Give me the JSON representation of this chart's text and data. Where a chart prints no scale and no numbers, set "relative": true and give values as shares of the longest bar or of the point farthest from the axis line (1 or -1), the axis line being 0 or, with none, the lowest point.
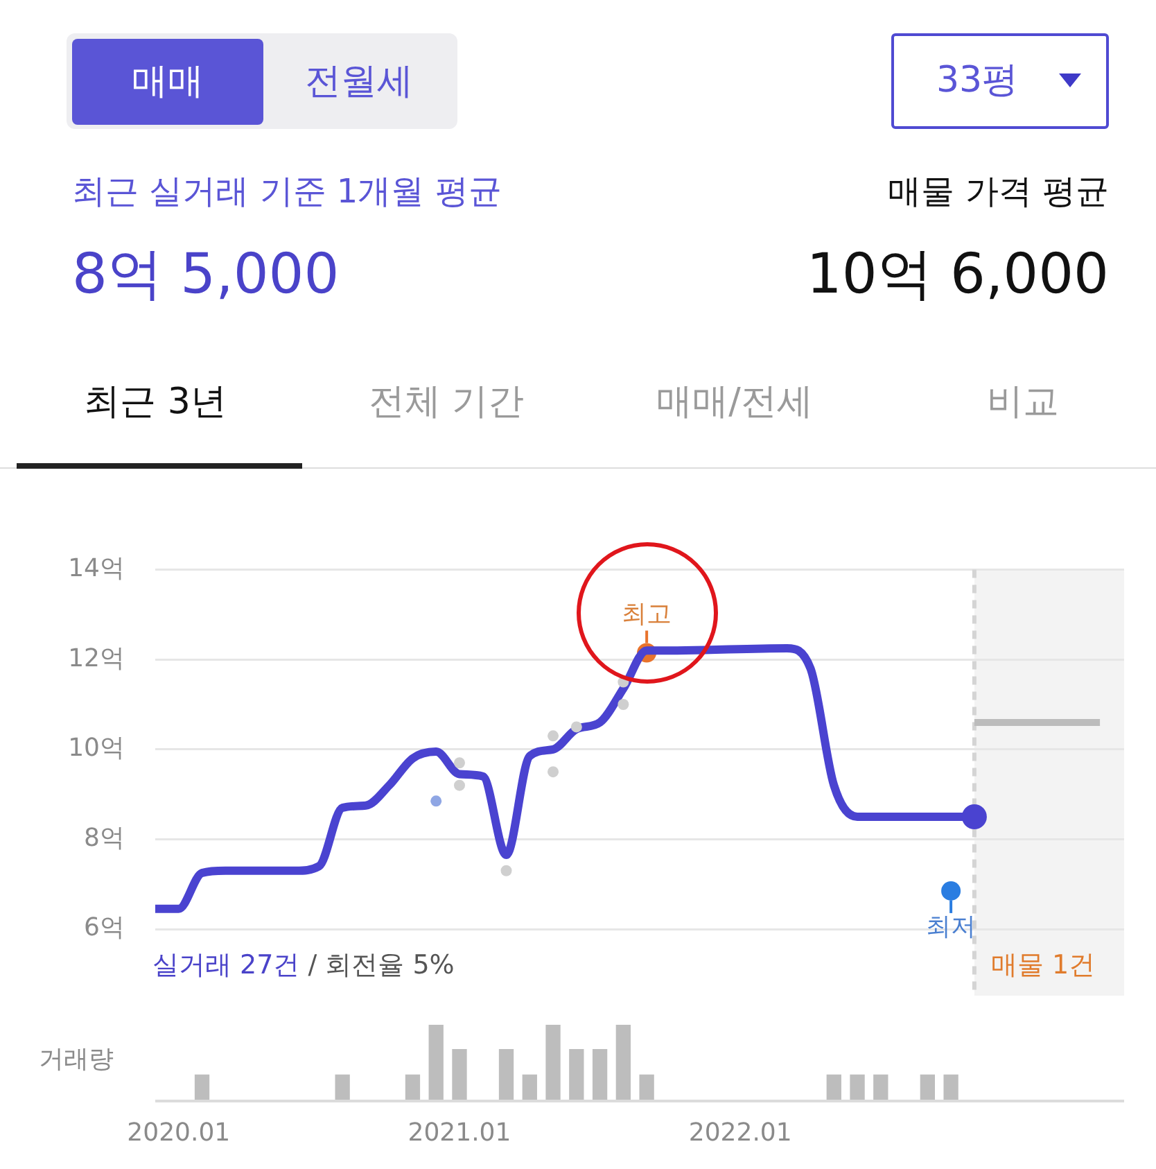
{
  "chart_data": [
    {
      "type": "other",
      "annotations": [
        "매매",
        "전월세",
        "33평",
        "최근 실거래 기준 1개월 평균",
        "8억 5,000",
        "매물 가격 평균",
        "10억 6,000",
        "최근 3년",
        "전체 기간",
        "매매/전세",
        "비교"
      ]
    },
    {
      "type": "line",
      "x": [
        "2019-12",
        "2020-01",
        "2020-02",
        "2020-03",
        "2020-06",
        "2020-07",
        "2020-08",
        "2020-09",
        "2020-10",
        "2020-11",
        "2020-12",
        "2021-01",
        "2021-02",
        "2021-03",
        "2021-04",
        "2021-05",
        "2021-06",
        "2021-07",
        "2021-08",
        "2021-09",
        "2021-10",
        "2022-03",
        "2022-04",
        "2022-05",
        "2022-06",
        "2022-11"
      ],
      "series": [
        {
          "type": "line",
          "marker": "none",
          "color": "#4a43d0",
          "values": [
            6.45,
            6.45,
            7.25,
            7.3,
            7.3,
            7.4,
            8.7,
            8.75,
            9.2,
            9.8,
            9.95,
            9.45,
            9.4,
            7.65,
            9.85,
            10.0,
            10.45,
            10.6,
            11.35,
            12.2,
            12.2,
            12.25,
            11.8,
            9.2,
            8.5,
            8.5
          ]
        },
        {
          "type": "scatter",
          "marker": "circle",
          "x": [
            "2020-12",
            "2021-01",
            "2021-01",
            "2021-03",
            "2021-05",
            "2021-05",
            "2021-06",
            "2021-08",
            "2021-08"
          ],
          "values": [
            8.85,
            9.7,
            9.2,
            7.3,
            10.3,
            9.5,
            10.5,
            11.5,
            11.0
          ],
          "colors": [
            "#8fa6e4",
            "#cfcfcf",
            "#cfcfcf",
            "#cfcfcf",
            "#cfcfcf",
            "#cfcfcf",
            "#cfcfcf",
            "#cfcfcf",
            "#cfcfcf"
          ]
        },
        {
          "type": "line",
          "marker": "none",
          "x": [
            "2022-11",
            "2023-04-12"
          ],
          "values": [
            10.6,
            10.6
          ],
          "color": "#bcbcbc"
        }
      ],
      "xlim": [
        "2019-12",
        "2023-05-13"
      ],
      "ylim": [
        6,
        14
      ],
      "yticks": [
        {
          "value": 6,
          "label": "6억"
        },
        {
          "value": 8,
          "label": "8억"
        },
        {
          "value": 10,
          "label": "10억"
        },
        {
          "value": 12,
          "label": "12억"
        },
        {
          "value": 14,
          "label": "14억"
        }
      ],
      "grid": "y",
      "tick_labels": "y",
      "bands": [
        {
          "axis": "x",
          "from": "2022-11",
          "to": "2023-05-13",
          "color": "#f3f3f3"
        }
      ],
      "ref_lines": [
        {
          "axis": "x",
          "value": "2022-11",
          "color": "#d4d4d4",
          "line_style": "dashed"
        }
      ],
      "annotations": [
        {
          "text": "최고",
          "x": "2021-09",
          "y": 12.15
        },
        {
          "text": "최저",
          "x": "2022-10",
          "y": 6.85
        },
        "실거래 27건",
        "/ 회전율 5%",
        "매물 1건"
      ]
    },
    {
      "type": "bar",
      "relative": true,
      "ylabel": "거래량",
      "color": "#bdbdbd",
      "x": [
        "2020-02",
        "2020-08",
        "2020-11",
        "2020-12",
        "2021-01",
        "2021-03",
        "2021-04",
        "2021-05",
        "2021-06",
        "2021-07",
        "2021-08",
        "2021-09",
        "2022-05",
        "2022-06",
        "2022-07",
        "2022-09",
        "2022-10"
      ],
      "values": [
        0.33,
        0.33,
        0.33,
        1,
        0.67,
        0.67,
        0.33,
        1,
        0.67,
        0.67,
        1,
        0.33,
        0.33,
        0.33,
        0.33,
        0.33,
        0.33
      ],
      "xlim": [
        "2019-12",
        "2023-05-13"
      ],
      "xticks": [
        {
          "value": "2020-01",
          "label": "2020.01"
        },
        {
          "value": "2021-01",
          "label": "2021.01"
        },
        {
          "value": "2022-01",
          "label": "2022.01"
        }
      ],
      "tick_labels": "x",
      "grid": false
    }
  ]
}
